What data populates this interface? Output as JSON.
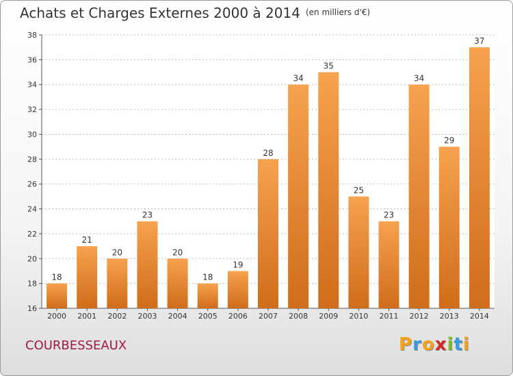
{
  "chart_data": {
    "type": "bar",
    "title": "Achats et Charges Externes 2000 à 2014",
    "subtitle": "(en milliers d'€)",
    "categories": [
      "2000",
      "2001",
      "2002",
      "2003",
      "2004",
      "2005",
      "2006",
      "2007",
      "2008",
      "2009",
      "2010",
      "2011",
      "2012",
      "2013",
      "2014"
    ],
    "values": [
      18,
      21,
      20,
      23,
      20,
      18,
      19,
      28,
      34,
      35,
      25,
      23,
      34,
      29,
      37
    ],
    "ylim": [
      16,
      38
    ],
    "yticks": [
      16,
      18,
      20,
      22,
      24,
      26,
      28,
      30,
      32,
      34,
      36,
      38
    ],
    "grid": "horizontal dotted",
    "bar_color_top": "#f6a24e",
    "bar_color_bottom": "#d06c1a"
  },
  "footer": {
    "commune": "COURBESSEAUX",
    "commune_color": "#a2164a",
    "logo_letters": [
      "P",
      "r",
      "o",
      "x",
      "i",
      "t",
      "i"
    ],
    "logo_colors": [
      "#f4a21c",
      "#3b9ad9",
      "#f4a21c",
      "#d42a2a",
      "#7bbf2a",
      "#3b9ad9",
      "#f4a21c"
    ]
  }
}
